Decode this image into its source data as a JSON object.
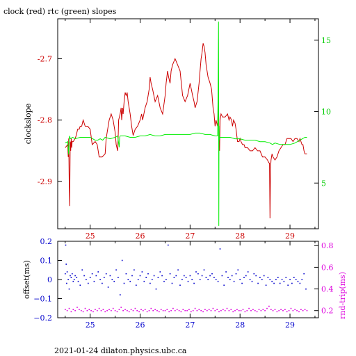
{
  "chart_data": [
    {
      "type": "line",
      "title": "clock (red) rtc (green) slopes",
      "ylabel": "clockslope",
      "x_ticks": [
        "25",
        "26",
        "27",
        "28",
        "29"
      ],
      "xlim": [
        24.35,
        29.57
      ],
      "ylim_left": [
        -2.977,
        -2.635
      ],
      "y_ticks_left": [
        "-2.7",
        "-2.8",
        "-2.9"
      ],
      "ylim_right": [
        1.8,
        16.5
      ],
      "y_ticks_right": [
        "15",
        "10",
        "5"
      ],
      "colors": {
        "clock": "#cc0000",
        "rtc": "#00ee00",
        "axes_left": "#cc0000",
        "axes_right": "#00cc00"
      },
      "series": [
        {
          "key": "clock",
          "axis": "left",
          "x": [
            24.5,
            24.55,
            24.56,
            24.57,
            24.58,
            24.59,
            24.6,
            24.61,
            24.62,
            24.63,
            24.64,
            24.66,
            24.7,
            24.72,
            24.75,
            24.78,
            24.8,
            24.83,
            24.86,
            24.9,
            24.95,
            25.0,
            25.04,
            25.1,
            25.14,
            25.18,
            25.2,
            25.24,
            25.3,
            25.32,
            25.34,
            25.38,
            25.42,
            25.46,
            25.5,
            25.52,
            25.55,
            25.56,
            25.57,
            25.6,
            25.62,
            25.63,
            25.65,
            25.66,
            25.68,
            25.7,
            25.72,
            25.74,
            25.76,
            25.8,
            25.83,
            25.86,
            25.9,
            25.95,
            26.0,
            26.03,
            26.05,
            26.1,
            26.14,
            26.18,
            26.2,
            26.22,
            26.25,
            26.3,
            26.35,
            26.4,
            26.45,
            26.5,
            26.52,
            26.55,
            26.57,
            26.6,
            26.62,
            26.65,
            26.7,
            26.75,
            26.8,
            26.85,
            26.9,
            26.95,
            27.0,
            27.05,
            27.08,
            27.1,
            27.14,
            27.18,
            27.2,
            27.22,
            27.24,
            27.26,
            27.28,
            27.3,
            27.32,
            27.36,
            27.4,
            27.43,
            27.46,
            27.48,
            27.5,
            27.52,
            27.55,
            27.57,
            27.58,
            27.59,
            27.6,
            27.62,
            27.65,
            27.7,
            27.75,
            27.78,
            27.8,
            27.83,
            27.85,
            27.87,
            27.9,
            27.92,
            27.95,
            27.98,
            28.0,
            28.02,
            28.05,
            28.08,
            28.1,
            28.15,
            28.2,
            28.25,
            28.3,
            28.35,
            28.4,
            28.45,
            28.5,
            28.55,
            28.58,
            28.59,
            28.6,
            28.61,
            28.62,
            28.64,
            28.66,
            28.7,
            28.74,
            28.78,
            28.82,
            28.86,
            28.9,
            28.94,
            28.98,
            29.02,
            29.06,
            29.1,
            29.14,
            29.18,
            29.2,
            29.24,
            29.26,
            29.28,
            29.3,
            29.34
          ],
          "y": [
            -2.845,
            -2.84,
            -2.86,
            -2.83,
            -2.9,
            -2.94,
            -2.835,
            -2.85,
            -2.83,
            -2.845,
            -2.835,
            -2.835,
            -2.83,
            -2.825,
            -2.815,
            -2.815,
            -2.81,
            -2.81,
            -2.8,
            -2.81,
            -2.81,
            -2.815,
            -2.84,
            -2.835,
            -2.84,
            -2.86,
            -2.86,
            -2.86,
            -2.855,
            -2.83,
            -2.82,
            -2.8,
            -2.79,
            -2.8,
            -2.82,
            -2.84,
            -2.85,
            -2.83,
            -2.8,
            -2.79,
            -2.78,
            -2.8,
            -2.78,
            -2.79,
            -2.77,
            -2.755,
            -2.76,
            -2.755,
            -2.77,
            -2.79,
            -2.81,
            -2.825,
            -2.815,
            -2.81,
            -2.8,
            -2.79,
            -2.8,
            -2.78,
            -2.77,
            -2.75,
            -2.73,
            -2.74,
            -2.75,
            -2.77,
            -2.76,
            -2.78,
            -2.79,
            -2.76,
            -2.74,
            -2.72,
            -2.73,
            -2.74,
            -2.72,
            -2.71,
            -2.7,
            -2.71,
            -2.72,
            -2.76,
            -2.77,
            -2.76,
            -2.74,
            -2.76,
            -2.77,
            -2.78,
            -2.77,
            -2.74,
            -2.72,
            -2.7,
            -2.69,
            -2.675,
            -2.68,
            -2.69,
            -2.71,
            -2.73,
            -2.74,
            -2.75,
            -2.78,
            -2.79,
            -2.81,
            -2.8,
            -2.81,
            -2.77,
            -2.83,
            -2.85,
            -2.8,
            -2.79,
            -2.795,
            -2.795,
            -2.79,
            -2.8,
            -2.795,
            -2.8,
            -2.81,
            -2.8,
            -2.805,
            -2.815,
            -2.835,
            -2.835,
            -2.83,
            -2.835,
            -2.84,
            -2.84,
            -2.845,
            -2.845,
            -2.85,
            -2.85,
            -2.845,
            -2.85,
            -2.85,
            -2.86,
            -2.86,
            -2.865,
            -2.87,
            -2.87,
            -2.96,
            -2.88,
            -2.865,
            -2.855,
            -2.86,
            -2.865,
            -2.86,
            -2.85,
            -2.845,
            -2.84,
            -2.84,
            -2.83,
            -2.83,
            -2.83,
            -2.835,
            -2.83,
            -2.83,
            -2.835,
            -2.83,
            -2.84,
            -2.84,
            -2.85,
            -2.855,
            -2.855
          ]
        },
        {
          "key": "rtc",
          "axis": "right",
          "x": [
            24.5,
            24.55,
            24.57,
            24.58,
            24.59,
            24.6,
            24.65,
            24.7,
            24.8,
            24.9,
            25.0,
            25.05,
            25.1,
            25.15,
            25.2,
            25.25,
            25.3,
            25.4,
            25.5,
            25.55,
            25.57,
            25.58,
            25.59,
            25.6,
            25.7,
            25.8,
            25.9,
            26.0,
            26.1,
            26.2,
            26.3,
            26.4,
            26.5,
            26.6,
            26.7,
            26.8,
            26.9,
            27.0,
            27.1,
            27.2,
            27.3,
            27.4,
            27.5,
            27.55,
            27.56,
            27.57,
            27.575,
            27.58,
            27.585,
            27.59,
            27.6,
            27.62,
            27.7,
            27.8,
            27.9,
            28.0,
            28.1,
            28.2,
            28.3,
            28.4,
            28.5,
            28.6,
            28.65,
            28.7,
            28.8,
            28.9,
            29.0,
            29.1,
            29.2,
            29.3,
            29.34
          ],
          "y": [
            7.8,
            7.9,
            7.0,
            8.1,
            8.3,
            8.1,
            8.2,
            8.1,
            8.2,
            8.2,
            8.2,
            8.1,
            8.0,
            8.0,
            8.1,
            8.0,
            8.2,
            8.1,
            8.2,
            8.3,
            7.8,
            7.5,
            8.2,
            8.3,
            8.3,
            8.2,
            8.2,
            8.3,
            8.3,
            8.4,
            8.3,
            8.3,
            8.4,
            8.4,
            8.4,
            8.4,
            8.4,
            8.4,
            8.5,
            8.5,
            8.4,
            8.4,
            8.3,
            8.3,
            11.0,
            16.3,
            2.0,
            9.0,
            8.0,
            8.2,
            8.2,
            8.2,
            8.2,
            8.2,
            8.1,
            8.1,
            8.0,
            8.0,
            8.0,
            7.9,
            7.9,
            7.8,
            7.7,
            7.8,
            7.7,
            7.7,
            7.7,
            7.8,
            8.0,
            8.2,
            8.2
          ]
        }
      ]
    },
    {
      "type": "scatter",
      "ylabel_left": "offset(ms)",
      "ylabel_right": "rnd-trip(ms)",
      "x_ticks": [
        "25",
        "26",
        "27",
        "28",
        "29"
      ],
      "xlim": [
        24.35,
        29.57
      ],
      "ylim_left": [
        -0.2,
        0.2
      ],
      "y_ticks_left": [
        "0.2",
        "0.1",
        "0",
        "−0.1",
        "−0.2"
      ],
      "ylim_right": [
        0.134,
        0.84
      ],
      "y_ticks_right": [
        "0.8",
        "0.6",
        "0.4",
        "0.2"
      ],
      "colors": {
        "offset": "#0000cc",
        "roundtrip": "#dd00dd"
      },
      "series": [
        {
          "key": "offset",
          "axis": "left",
          "x": [
            24.5,
            24.51,
            24.52,
            24.53,
            24.54,
            24.56,
            24.58,
            24.6,
            24.62,
            24.64,
            24.66,
            24.68,
            24.7,
            24.73,
            24.76,
            24.8,
            24.84,
            24.88,
            24.92,
            24.96,
            25.0,
            25.04,
            25.08,
            25.12,
            25.16,
            25.2,
            25.24,
            25.28,
            25.32,
            25.36,
            25.4,
            25.44,
            25.48,
            25.52,
            25.56,
            25.6,
            25.64,
            25.68,
            25.72,
            25.76,
            25.8,
            25.84,
            25.88,
            25.92,
            25.96,
            26.0,
            26.04,
            26.08,
            26.12,
            26.16,
            26.2,
            26.24,
            26.28,
            26.32,
            26.36,
            26.4,
            26.44,
            26.48,
            26.52,
            26.56,
            26.6,
            26.64,
            26.68,
            26.72,
            26.76,
            26.8,
            26.84,
            26.88,
            26.92,
            26.96,
            27.0,
            27.04,
            27.08,
            27.12,
            27.16,
            27.2,
            27.24,
            27.28,
            27.32,
            27.36,
            27.4,
            27.44,
            27.48,
            27.52,
            27.56,
            27.6,
            27.64,
            27.68,
            27.72,
            27.76,
            27.8,
            27.84,
            27.88,
            27.92,
            27.96,
            28.0,
            28.04,
            28.08,
            28.12,
            28.16,
            28.2,
            28.24,
            28.28,
            28.32,
            28.36,
            28.4,
            28.44,
            28.48,
            28.52,
            28.56,
            28.6,
            28.64,
            28.68,
            28.72,
            28.76,
            28.8,
            28.84,
            28.88,
            28.92,
            28.96,
            29.0,
            29.04,
            29.08,
            29.12,
            29.16,
            29.2,
            29.24,
            29.28,
            29.32
          ],
          "y": [
            0.03,
            0.18,
            0.08,
            -0.02,
            0.04,
            0.0,
            -0.05,
            0.02,
            0.01,
            0.03,
            -0.01,
            0.0,
            0.02,
            0.01,
            -0.01,
            -0.03,
            0.05,
            0.02,
            0.0,
            -0.02,
            0.01,
            0.03,
            -0.01,
            0.02,
            0.04,
            0.0,
            -0.02,
            0.01,
            0.03,
            -0.04,
            0.02,
            0.0,
            -0.01,
            0.05,
            0.01,
            -0.08,
            0.1,
            -0.02,
            0.03,
            0.0,
            -0.01,
            0.02,
            0.05,
            -0.03,
            0.0,
            0.02,
            0.04,
            -0.01,
            0.01,
            0.03,
            -0.02,
            0.0,
            0.02,
            -0.05,
            0.01,
            0.04,
            0.02,
            -0.01,
            0.0,
            0.18,
            0.03,
            -0.02,
            0.01,
            0.02,
            0.05,
            -0.03,
            0.0,
            0.02,
            0.01,
            -0.01,
            0.02,
            0.0,
            -0.02,
            0.04,
            0.03,
            0.0,
            0.02,
            0.05,
            0.01,
            0.0,
            0.02,
            0.03,
            0.01,
            0.0,
            -0.01,
            0.16,
            0.02,
            -0.03,
            0.04,
            0.01,
            0.0,
            0.02,
            -0.01,
            0.03,
            0.05,
            0.0,
            -0.02,
            0.01,
            0.02,
            0.04,
            0.0,
            -0.01,
            0.03,
            0.02,
            -0.02,
            0.01,
            0.0,
            0.02,
            -0.03,
            0.01,
            0.0,
            -0.01,
            -0.02,
            0.0,
            0.01,
            -0.02,
            0.0,
            -0.01,
            0.01,
            -0.03,
            0.0,
            -0.02,
            0.01,
            0.0,
            -0.01,
            -0.02,
            0.0,
            0.03,
            -0.05
          ]
        },
        {
          "key": "roundtrip",
          "axis": "right",
          "x": [
            24.5,
            24.54,
            24.58,
            24.62,
            24.66,
            24.7,
            24.74,
            24.78,
            24.82,
            24.86,
            24.9,
            24.94,
            24.98,
            25.02,
            25.06,
            25.1,
            25.14,
            25.18,
            25.22,
            25.26,
            25.3,
            25.34,
            25.38,
            25.42,
            25.46,
            25.5,
            25.54,
            25.58,
            25.62,
            25.66,
            25.7,
            25.74,
            25.78,
            25.82,
            25.86,
            25.9,
            25.94,
            25.98,
            26.02,
            26.06,
            26.1,
            26.14,
            26.18,
            26.22,
            26.26,
            26.3,
            26.34,
            26.38,
            26.42,
            26.46,
            26.5,
            26.54,
            26.58,
            26.62,
            26.66,
            26.7,
            26.74,
            26.78,
            26.82,
            26.86,
            26.9,
            26.94,
            26.98,
            27.02,
            27.06,
            27.1,
            27.14,
            27.18,
            27.22,
            27.26,
            27.3,
            27.34,
            27.38,
            27.42,
            27.46,
            27.5,
            27.54,
            27.58,
            27.62,
            27.66,
            27.7,
            27.74,
            27.78,
            27.82,
            27.86,
            27.9,
            27.94,
            27.98,
            28.02,
            28.06,
            28.1,
            28.14,
            28.18,
            28.22,
            28.26,
            28.3,
            28.34,
            28.38,
            28.42,
            28.46,
            28.5,
            28.54,
            28.58,
            28.62,
            28.66,
            28.7,
            28.74,
            28.78,
            28.82,
            28.86,
            28.9,
            28.94,
            28.98,
            29.02,
            29.06,
            29.1,
            29.14,
            29.18,
            29.22,
            29.26,
            29.3,
            29.34
          ],
          "y": [
            0.21,
            0.2,
            0.22,
            0.19,
            0.21,
            0.2,
            0.23,
            0.21,
            0.2,
            0.19,
            0.22,
            0.2,
            0.21,
            0.2,
            0.19,
            0.21,
            0.2,
            0.22,
            0.2,
            0.21,
            0.19,
            0.2,
            0.21,
            0.2,
            0.22,
            0.2,
            0.19,
            0.21,
            0.23,
            0.2,
            0.21,
            0.2,
            0.19,
            0.21,
            0.2,
            0.22,
            0.2,
            0.19,
            0.21,
            0.2,
            0.21,
            0.19,
            0.2,
            0.22,
            0.2,
            0.21,
            0.2,
            0.19,
            0.21,
            0.2,
            0.2,
            0.21,
            0.19,
            0.2,
            0.22,
            0.2,
            0.21,
            0.2,
            0.19,
            0.21,
            0.2,
            0.2,
            0.21,
            0.19,
            0.2,
            0.22,
            0.2,
            0.21,
            0.2,
            0.19,
            0.21,
            0.2,
            0.21,
            0.2,
            0.22,
            0.2,
            0.21,
            0.19,
            0.2,
            0.21,
            0.2,
            0.22,
            0.2,
            0.21,
            0.19,
            0.2,
            0.21,
            0.2,
            0.2,
            0.21,
            0.19,
            0.2,
            0.22,
            0.2,
            0.21,
            0.2,
            0.19,
            0.21,
            0.2,
            0.21,
            0.2,
            0.22,
            0.24,
            0.21,
            0.2,
            0.21,
            0.19,
            0.2,
            0.21,
            0.2,
            0.21,
            0.19,
            0.2,
            0.22,
            0.2,
            0.21,
            0.2,
            0.19,
            0.21,
            0.2,
            0.21,
            0.2
          ]
        }
      ]
    }
  ],
  "footer": "2021-01-24 dilaton.physics.ubc.ca"
}
